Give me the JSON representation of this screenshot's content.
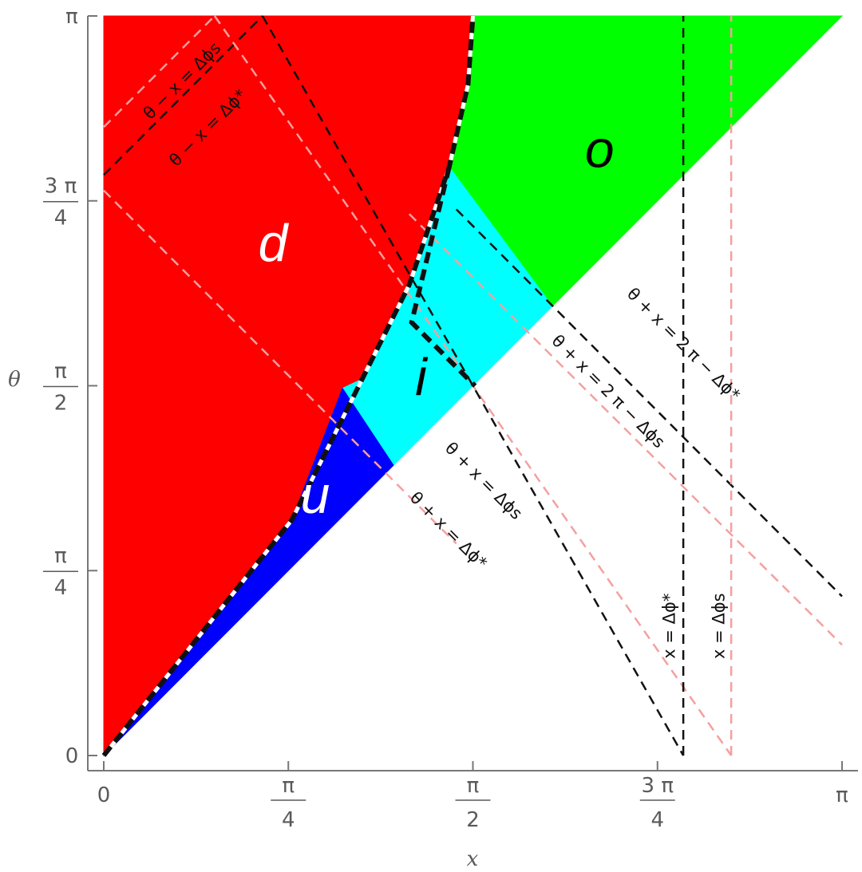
{
  "chart_data": {
    "type": "area",
    "xlabel": "x",
    "ylabel": "θ",
    "xlim": [
      0,
      3.14159
    ],
    "ylim": [
      0,
      3.14159
    ],
    "x_ticks": [
      {
        "value": 0,
        "num": "0",
        "den": ""
      },
      {
        "value": 0.7854,
        "num": "π",
        "den": "4"
      },
      {
        "value": 1.5708,
        "num": "π",
        "den": "2"
      },
      {
        "value": 2.3562,
        "num": "3 π",
        "den": "4"
      },
      {
        "value": 3.14159,
        "num": "π",
        "den": ""
      }
    ],
    "y_ticks": [
      {
        "value": 0,
        "num": "0",
        "den": ""
      },
      {
        "value": 0.7854,
        "num": "π",
        "den": "4"
      },
      {
        "value": 1.5708,
        "num": "π",
        "den": "2"
      },
      {
        "value": 2.3562,
        "num": "3 π",
        "den": "4"
      },
      {
        "value": 3.14159,
        "num": "π",
        "den": ""
      }
    ],
    "params": {
      "delta_phi_star": 2.466,
      "delta_phi_s": 2.67
    },
    "regions": [
      {
        "label": "d",
        "color": "#ff0000",
        "label_color": "#ffffff",
        "label_pos": [
          0.72,
          2.1
        ],
        "polygon": [
          [
            0,
            0
          ],
          [
            0.8,
            1.0
          ],
          [
            1.1,
            1.6
          ],
          [
            1.3,
            2.0
          ],
          [
            1.47,
            2.5
          ],
          [
            1.55,
            2.85
          ],
          [
            1.5708,
            3.14159
          ],
          [
            0,
            3.14159
          ]
        ]
      },
      {
        "label": "o",
        "color": "#00ff00",
        "label_color": "#000000",
        "label_pos": [
          2.11,
          2.5
        ],
        "polygon": [
          [
            1.5708,
            3.14159
          ],
          [
            3.14159,
            3.14159
          ],
          [
            1.909,
            1.909
          ],
          [
            1.47,
            2.5
          ],
          [
            1.55,
            2.85
          ]
        ]
      },
      {
        "label": "i",
        "color": "#00ffff",
        "label_color": "#000000",
        "label_pos": [
          1.35,
          1.53
        ],
        "polygon": [
          [
            1.016,
            1.56
          ],
          [
            1.233,
            1.233
          ],
          [
            1.909,
            1.909
          ],
          [
            1.47,
            2.5
          ],
          [
            1.3,
            2.0
          ],
          [
            1.1,
            1.6
          ]
        ]
      },
      {
        "label": "u",
        "color": "#0000ff",
        "label_color": "#ffffff",
        "label_pos": [
          0.9,
          1.03
        ],
        "polygon": [
          [
            0,
            0
          ],
          [
            1.233,
            1.233
          ],
          [
            1.016,
            1.56
          ],
          [
            0.8,
            1.0
          ]
        ]
      }
    ],
    "annotations": [
      {
        "text": "θ − x = Δϕs",
        "pos": [
          0.35,
          2.85
        ],
        "angle": -45,
        "color": "#111111"
      },
      {
        "text": "θ − x = Δϕ*",
        "pos": [
          0.46,
          2.65
        ],
        "angle": -45,
        "color": "#111111"
      },
      {
        "text": "θ + x = 2 π − Δϕ*",
        "pos": [
          2.45,
          1.73
        ],
        "angle": 45,
        "color": "#111111"
      },
      {
        "text": "θ + x = 2 π − Δϕs",
        "pos": [
          2.13,
          1.53
        ],
        "angle": 45,
        "color": "#111111"
      },
      {
        "text": "θ + x = Δϕs",
        "pos": [
          1.6,
          1.15
        ],
        "angle": 45,
        "color": "#111111"
      },
      {
        "text": "θ + x = Δϕ*",
        "pos": [
          1.45,
          0.94
        ],
        "angle": 45,
        "color": "#111111"
      },
      {
        "text": "x = Δϕ*",
        "pos": [
          2.43,
          0.55
        ],
        "angle": -90,
        "color": "#111111"
      },
      {
        "text": "x = Δϕs",
        "pos": [
          2.64,
          0.55
        ],
        "angle": -90,
        "color": "#111111"
      }
    ],
    "lines": [
      {
        "name": "theta-minus-x-dphi-s",
        "color": "#f4a0a0",
        "points": [
          [
            0,
            2.67
          ],
          [
            0.4716,
            3.14159
          ]
        ]
      },
      {
        "name": "theta-minus-x-dphi-s-lower",
        "color": "#f4a0a0",
        "points": [
          [
            0,
            2.4
          ],
          [
            1.5,
            0.9
          ]
        ]
      },
      {
        "name": "theta-minus-x-dphi-star",
        "color": "#111111",
        "points": [
          [
            0,
            2.466
          ],
          [
            0.6756,
            3.14159
          ]
        ]
      },
      {
        "name": "theta-plus-x-dphi-s",
        "color": "#f4a0a0",
        "points": [
          [
            0.4716,
            3.14159
          ],
          [
            2.67,
            0
          ]
        ]
      },
      {
        "name": "theta-plus-x-dphi-star",
        "color": "#111111",
        "points": [
          [
            0.6756,
            3.14159
          ],
          [
            2.466,
            0.0
          ]
        ]
      },
      {
        "name": "theta-plus-x-2pi-dphi-star",
        "color": "#111111",
        "points": [
          [
            1.5,
            2.32
          ],
          [
            3.14159,
            0.676
          ]
        ]
      },
      {
        "name": "theta-plus-x-2pi-dphi-s",
        "color": "#f4a0a0",
        "points": [
          [
            1.3,
            2.3
          ],
          [
            3.14159,
            0.47
          ]
        ]
      },
      {
        "name": "x-dphi-star",
        "color": "#111111",
        "points": [
          [
            2.466,
            0
          ],
          [
            2.466,
            3.14159
          ]
        ]
      },
      {
        "name": "x-dphi-s",
        "color": "#f4a0a0",
        "points": [
          [
            2.67,
            0
          ],
          [
            2.67,
            3.14159
          ]
        ]
      },
      {
        "name": "boundary-curve",
        "color": "#111111",
        "points": [
          [
            0,
            0
          ],
          [
            0.8,
            1.0
          ],
          [
            1.1,
            1.6
          ],
          [
            1.3,
            2.0
          ],
          [
            1.47,
            2.5
          ],
          [
            1.55,
            2.85
          ],
          [
            1.5708,
            3.14159
          ]
        ]
      },
      {
        "name": "i-inner-path",
        "color": "#111111",
        "points": [
          [
            1.47,
            2.5
          ],
          [
            1.31,
            1.84
          ],
          [
            1.58,
            1.57
          ]
        ]
      }
    ]
  }
}
